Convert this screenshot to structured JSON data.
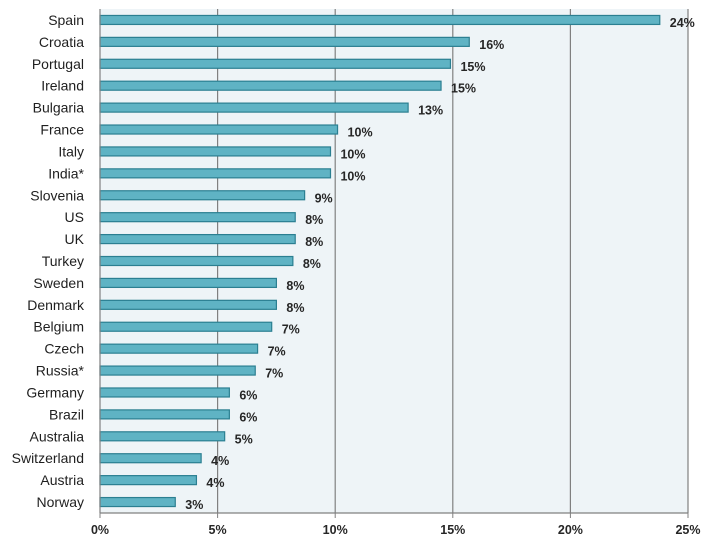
{
  "chart_data": {
    "type": "bar",
    "orientation": "horizontal",
    "categories": [
      "Spain",
      "Croatia",
      "Portugal",
      "Ireland",
      "Bulgaria",
      "France",
      "Italy",
      "India*",
      "Slovenia",
      "US",
      "UK",
      "Turkey",
      "Sweden",
      "Denmark",
      "Belgium",
      "Czech",
      "Russia*",
      "Germany",
      "Brazil",
      "Australia",
      "Switzerland",
      "Austria",
      "Norway"
    ],
    "values": [
      23.8,
      15.7,
      14.9,
      14.5,
      13.1,
      10.1,
      9.8,
      9.8,
      8.7,
      8.3,
      8.3,
      8.2,
      7.5,
      7.5,
      7.3,
      6.7,
      6.6,
      5.5,
      5.5,
      5.3,
      4.3,
      4.1,
      3.2
    ],
    "data_labels": [
      "24%",
      "16%",
      "15%",
      "15%",
      "13%",
      "10%",
      "10%",
      "10%",
      "9%",
      "8%",
      "8%",
      "8%",
      "8%",
      "8%",
      "7%",
      "7%",
      "7%",
      "6%",
      "6%",
      "5%",
      "4%",
      "4%",
      "3%"
    ],
    "x_ticks": [
      "0%",
      "5%",
      "10%",
      "15%",
      "20%",
      "25%"
    ],
    "xlim": [
      0,
      25
    ],
    "grid": "vertical",
    "title": "",
    "xlabel": "",
    "ylabel": "",
    "colors": {
      "bar_fill": "#5fb3c4",
      "bar_stroke": "#2b7f91",
      "plot_bg": "#eef4f7",
      "grid": "#808080",
      "axis": "#808080"
    }
  }
}
